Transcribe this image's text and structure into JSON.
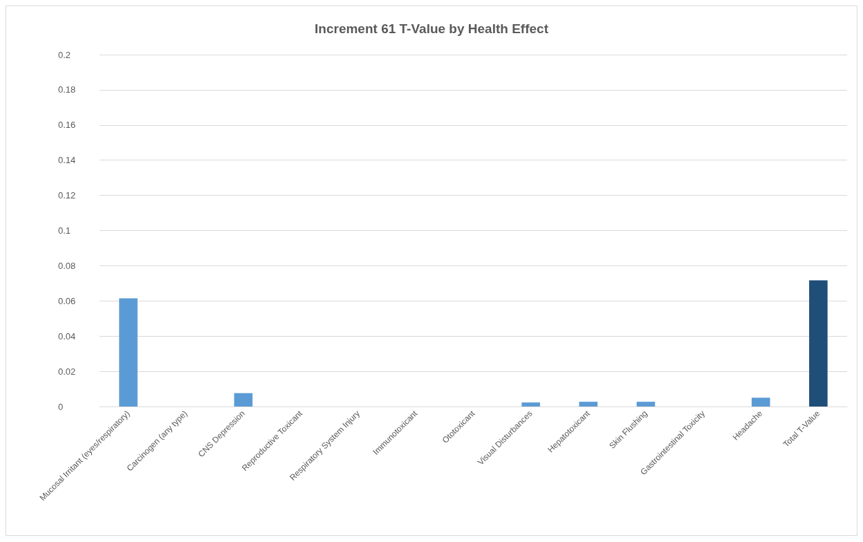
{
  "chart_data": {
    "type": "bar",
    "title": "Increment 61 T-Value by Health Effect",
    "categories": [
      "Mucosal Irritant (eyes/respiratory)",
      "Carcinogen (any type)",
      "CNS Depression",
      "Reproductive Toxicant",
      "Respiratory System Injury",
      "Immunotoxicant",
      "Ototoxicant",
      "Visual Disturbances",
      "Hepatotoxicant",
      "Skin Flushing",
      "Gastrointestinal Toxicity",
      "Headache",
      "Total T-Value"
    ],
    "values": [
      0.0615,
      0,
      0.0076,
      0,
      0,
      0,
      0,
      0.0023,
      0.0027,
      0.0027,
      0,
      0.005,
      0.0717
    ],
    "colors": [
      "#5b9bd5",
      "#5b9bd5",
      "#5b9bd5",
      "#5b9bd5",
      "#5b9bd5",
      "#5b9bd5",
      "#5b9bd5",
      "#5b9bd5",
      "#5b9bd5",
      "#5b9bd5",
      "#5b9bd5",
      "#5b9bd5",
      "#1f4e79"
    ],
    "ylim": [
      0,
      0.2
    ],
    "yticks": [
      0,
      0.02,
      0.04,
      0.06,
      0.08,
      0.1,
      0.12,
      0.14,
      0.16,
      0.18,
      0.2
    ],
    "grid": "y"
  }
}
